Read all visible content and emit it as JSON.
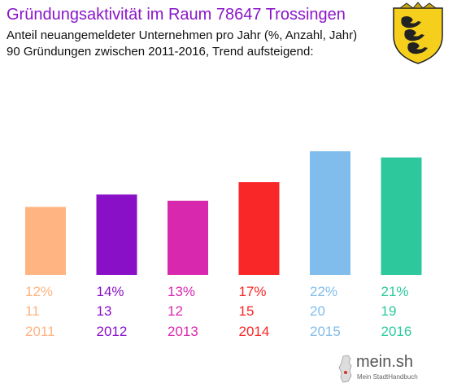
{
  "title": "Gründungsaktivität im Raum 78647 Trossingen",
  "subtitle_lines": [
    "Anteil neuangemeldeter Unternehmen pro Jahr (%, Anzahl, Jahr)",
    "90 Gründungen zwischen 2011-2016, Trend aufsteigend:"
  ],
  "coat_of_arms": "baden-wuerttemberg-coat-of-arms",
  "brand": {
    "name": "mein.sh",
    "tagline": "Mein StadtHandbuch"
  },
  "chart_data": {
    "type": "bar",
    "categories": [
      "2011",
      "2012",
      "2013",
      "2014",
      "2015",
      "2016"
    ],
    "values": [
      11,
      13,
      12,
      15,
      20,
      19
    ],
    "percent_labels": [
      "12%",
      "14%",
      "13%",
      "17%",
      "22%",
      "21%"
    ],
    "colors": [
      "#ffb482",
      "#8a10c8",
      "#d829ae",
      "#f92727",
      "#80bdec",
      "#2dc99d"
    ],
    "grid": false,
    "legend": "none"
  }
}
